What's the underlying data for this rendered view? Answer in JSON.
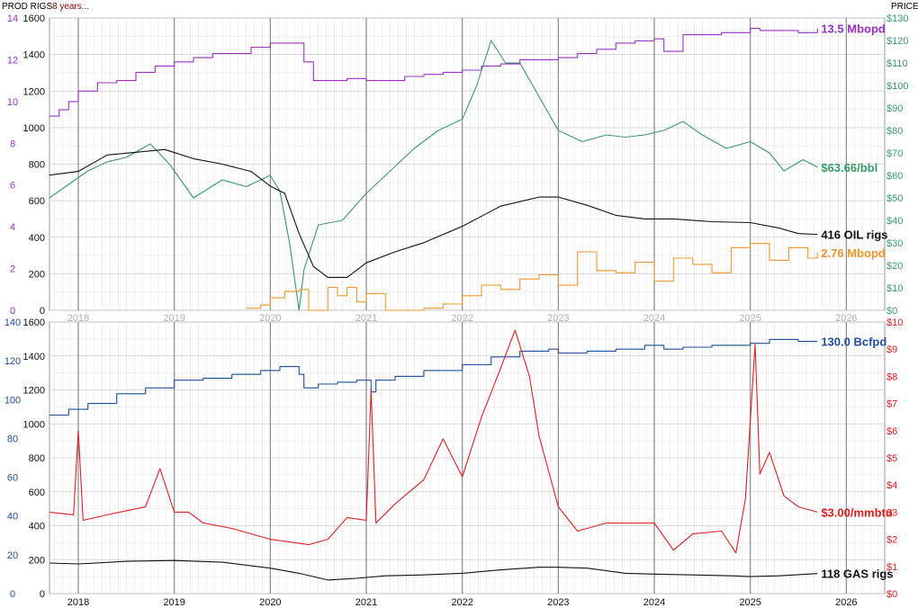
{
  "header": {
    "left_label": "PROD RIGS",
    "span_label": "8 years...",
    "right_label": "PRICE"
  },
  "colors": {
    "purple": "#9b30c8",
    "green": "#3a9a6a",
    "black": "#111111",
    "orange": "#f0962a",
    "blue": "#1f4f9a",
    "red": "#e02020",
    "vgrid": "#8a8a8a",
    "minorgrid": "#e4e4e4",
    "majorgrid": "#cfcfcf"
  },
  "chart_data": [
    {
      "type": "line",
      "panel": "oil",
      "x_ticks": [
        "2018",
        "2019",
        "2020",
        "2021",
        "2022",
        "2023",
        "2024",
        "2025",
        "2026"
      ],
      "x_range": [
        2017.7,
        2026.4
      ],
      "left_outer_axis": {
        "ticks": [
          "0",
          "2",
          "4",
          "6",
          "8",
          "10",
          "12",
          "14"
        ],
        "range": [
          0,
          14
        ],
        "color": "purple"
      },
      "left_inner_axis": {
        "ticks": [
          "0",
          "200",
          "400",
          "600",
          "800",
          "1000",
          "1200",
          "1400",
          "1600"
        ],
        "range": [
          0,
          1600
        ]
      },
      "right_axis": {
        "ticks": [
          "$0",
          "$10",
          "$20",
          "$30",
          "$40",
          "$50",
          "$60",
          "$70",
          "$80",
          "$90",
          "$100",
          "$110",
          "$120",
          "$130"
        ],
        "range": [
          0,
          130
        ],
        "color": "green"
      },
      "series": [
        {
          "name": "13.5 Mbopd",
          "color": "purple",
          "axis": "left_outer_axis",
          "x": [
            2017.7,
            2017.8,
            2017.9,
            2018.0,
            2018.2,
            2018.4,
            2018.6,
            2018.8,
            2019.0,
            2019.2,
            2019.4,
            2019.6,
            2019.8,
            2020.0,
            2020.1,
            2020.2,
            2020.35,
            2020.45,
            2020.6,
            2020.8,
            2021.0,
            2021.2,
            2021.4,
            2021.6,
            2021.8,
            2022.0,
            2022.2,
            2022.4,
            2022.6,
            2022.8,
            2023.0,
            2023.2,
            2023.4,
            2023.6,
            2023.8,
            2024.0,
            2024.1,
            2024.3,
            2024.5,
            2024.7,
            2024.9,
            2025.0,
            2025.1,
            2025.3,
            2025.5,
            2025.7
          ],
          "values": [
            9.3,
            9.6,
            10.0,
            10.5,
            10.9,
            11.0,
            11.4,
            11.7,
            11.9,
            12.1,
            12.3,
            12.3,
            12.6,
            12.8,
            12.8,
            12.8,
            11.9,
            11.0,
            11.0,
            11.1,
            11.0,
            11.0,
            11.2,
            11.3,
            11.4,
            11.5,
            11.7,
            11.8,
            12.0,
            12.0,
            12.1,
            12.3,
            12.5,
            12.8,
            12.9,
            13.0,
            12.4,
            13.2,
            13.2,
            13.3,
            13.3,
            13.5,
            13.4,
            13.4,
            13.3,
            13.5
          ]
        },
        {
          "name": "$63.66/bbl",
          "color": "green",
          "axis": "right_axis",
          "x": [
            2017.7,
            2017.9,
            2018.1,
            2018.3,
            2018.5,
            2018.75,
            2018.95,
            2019.2,
            2019.5,
            2019.75,
            2020.0,
            2020.1,
            2020.2,
            2020.3,
            2020.35,
            2020.5,
            2020.75,
            2021.0,
            2021.25,
            2021.5,
            2021.75,
            2022.0,
            2022.15,
            2022.3,
            2022.45,
            2022.6,
            2022.8,
            2023.0,
            2023.25,
            2023.5,
            2023.7,
            2023.9,
            2024.1,
            2024.3,
            2024.5,
            2024.75,
            2025.0,
            2025.2,
            2025.35,
            2025.55,
            2025.7
          ],
          "values": [
            50,
            56,
            62,
            66,
            68,
            74,
            65,
            50,
            58,
            55,
            60,
            53,
            30,
            -5,
            18,
            38,
            40,
            52,
            62,
            72,
            80,
            85,
            100,
            120,
            110,
            110,
            95,
            80,
            75,
            78,
            77,
            78,
            80,
            84,
            78,
            72,
            75,
            70,
            62,
            67,
            63.66
          ]
        },
        {
          "name": "416 OIL rigs",
          "color": "black",
          "axis": "left_inner_axis",
          "x": [
            2017.7,
            2018.0,
            2018.3,
            2018.6,
            2018.9,
            2019.2,
            2019.5,
            2019.8,
            2020.0,
            2020.15,
            2020.3,
            2020.45,
            2020.6,
            2020.8,
            2021.0,
            2021.3,
            2021.6,
            2022.0,
            2022.4,
            2022.8,
            2023.0,
            2023.3,
            2023.6,
            2023.9,
            2024.2,
            2024.6,
            2025.0,
            2025.3,
            2025.5,
            2025.7
          ],
          "values": [
            740,
            760,
            850,
            865,
            880,
            830,
            800,
            760,
            680,
            640,
            420,
            240,
            180,
            180,
            260,
            320,
            370,
            460,
            570,
            620,
            620,
            575,
            520,
            500,
            500,
            485,
            480,
            450,
            420,
            416
          ]
        },
        {
          "name": "2.76 Mbopd",
          "color": "orange",
          "axis": "left_outer_axis",
          "x": [
            2019.75,
            2019.9,
            2020.0,
            2020.15,
            2020.3,
            2020.4,
            2020.6,
            2020.7,
            2020.8,
            2020.9,
            2021.0,
            2021.2,
            2021.4,
            2021.6,
            2021.8,
            2022.0,
            2022.2,
            2022.4,
            2022.6,
            2022.8,
            2023.0,
            2023.2,
            2023.4,
            2023.6,
            2023.8,
            2024.0,
            2024.2,
            2024.4,
            2024.6,
            2024.8,
            2025.0,
            2025.2,
            2025.4,
            2025.6,
            2025.7
          ],
          "values": [
            0.1,
            0.25,
            0.6,
            0.9,
            1.0,
            0.0,
            1.1,
            0.7,
            1.1,
            0.4,
            0.8,
            0.0,
            0.0,
            0.1,
            0.3,
            0.7,
            1.2,
            1.0,
            1.5,
            1.7,
            1.2,
            2.8,
            1.9,
            1.8,
            2.3,
            1.4,
            2.5,
            2.2,
            1.8,
            3.0,
            3.2,
            2.4,
            3.0,
            2.5,
            2.76
          ]
        }
      ],
      "end_labels": [
        {
          "series": 0,
          "text": "13.5 Mbopd"
        },
        {
          "series": 1,
          "text": "$63.66/bbl"
        },
        {
          "series": 2,
          "text": "416 OIL rigs"
        },
        {
          "series": 3,
          "text": "2.76 Mbopd"
        }
      ]
    },
    {
      "type": "line",
      "panel": "gas",
      "x_ticks": [
        "2018",
        "2019",
        "2020",
        "2021",
        "2022",
        "2023",
        "2024",
        "2025",
        "2026"
      ],
      "x_range": [
        2017.7,
        2026.4
      ],
      "left_outer_axis": {
        "ticks": [
          "0",
          "20",
          "40",
          "60",
          "80",
          "100",
          "120",
          "140"
        ],
        "range": [
          0,
          140
        ],
        "color": "blue"
      },
      "left_inner_axis": {
        "ticks": [
          "0",
          "200",
          "400",
          "600",
          "800",
          "1000",
          "1200",
          "1400",
          "1600"
        ],
        "range": [
          0,
          1600
        ]
      },
      "right_axis": {
        "ticks": [
          "$0",
          "$1",
          "$2",
          "$3",
          "$4",
          "$5",
          "$6",
          "$7",
          "$8",
          "$9",
          "$10"
        ],
        "range": [
          0,
          10
        ],
        "color": "red"
      },
      "series": [
        {
          "name": "130.0 Bcfpd",
          "color": "blue",
          "axis": "left_outer_axis",
          "x": [
            2017.7,
            2017.9,
            2018.1,
            2018.4,
            2018.7,
            2019.0,
            2019.3,
            2019.6,
            2019.9,
            2020.1,
            2020.3,
            2020.35,
            2020.5,
            2020.7,
            2020.9,
            2021.0,
            2021.05,
            2021.1,
            2021.3,
            2021.6,
            2022.0,
            2022.3,
            2022.6,
            2022.9,
            2023.0,
            2023.3,
            2023.6,
            2023.9,
            2024.1,
            2024.3,
            2024.6,
            2024.9,
            2025.0,
            2025.2,
            2025.5,
            2025.7
          ],
          "values": [
            92,
            95,
            98,
            103,
            106,
            110,
            111,
            113,
            115,
            117,
            113,
            106,
            108,
            109,
            110,
            110,
            104,
            110,
            112,
            115,
            118,
            122,
            125,
            126,
            124,
            125,
            126,
            128,
            126,
            127,
            128,
            128,
            129,
            131,
            130,
            130
          ]
        },
        {
          "name": "$3.00/mmbtu",
          "color": "red",
          "axis": "right_axis",
          "x": [
            2017.7,
            2017.95,
            2018.0,
            2018.05,
            2018.3,
            2018.7,
            2018.85,
            2019.0,
            2019.15,
            2019.3,
            2019.6,
            2020.0,
            2020.4,
            2020.6,
            2020.8,
            2021.0,
            2021.05,
            2021.1,
            2021.3,
            2021.6,
            2021.8,
            2022.0,
            2022.2,
            2022.4,
            2022.55,
            2022.7,
            2022.8,
            2023.0,
            2023.2,
            2023.5,
            2023.8,
            2024.0,
            2024.2,
            2024.4,
            2024.7,
            2024.85,
            2024.95,
            2025.05,
            2025.1,
            2025.2,
            2025.35,
            2025.5,
            2025.7
          ],
          "values": [
            3.0,
            2.9,
            6.0,
            2.7,
            2.9,
            3.2,
            4.6,
            3.0,
            3.0,
            2.6,
            2.4,
            2.0,
            1.8,
            2.0,
            2.8,
            2.7,
            7.5,
            2.6,
            3.3,
            4.2,
            5.7,
            4.3,
            6.5,
            8.3,
            9.7,
            8.0,
            5.8,
            3.2,
            2.3,
            2.6,
            2.6,
            2.6,
            1.6,
            2.2,
            2.3,
            1.5,
            3.5,
            9.2,
            4.4,
            5.2,
            3.6,
            3.2,
            3.0
          ]
        },
        {
          "name": "118 GAS rigs",
          "color": "black",
          "axis": "left_inner_axis",
          "x": [
            2017.7,
            2018.0,
            2018.5,
            2019.0,
            2019.5,
            2020.0,
            2020.3,
            2020.6,
            2020.9,
            2021.2,
            2021.6,
            2022.0,
            2022.4,
            2022.8,
            2023.0,
            2023.3,
            2023.7,
            2024.0,
            2024.4,
            2024.8,
            2025.0,
            2025.3,
            2025.7
          ],
          "values": [
            180,
            175,
            190,
            195,
            185,
            150,
            120,
            80,
            90,
            105,
            110,
            120,
            140,
            155,
            155,
            150,
            120,
            115,
            110,
            105,
            100,
            105,
            118
          ]
        }
      ],
      "end_labels": [
        {
          "series": 0,
          "text": "130.0 Bcfpd"
        },
        {
          "series": 1,
          "text": "$3.00/mmbtu"
        },
        {
          "series": 2,
          "text": "118 GAS rigs"
        }
      ]
    }
  ]
}
